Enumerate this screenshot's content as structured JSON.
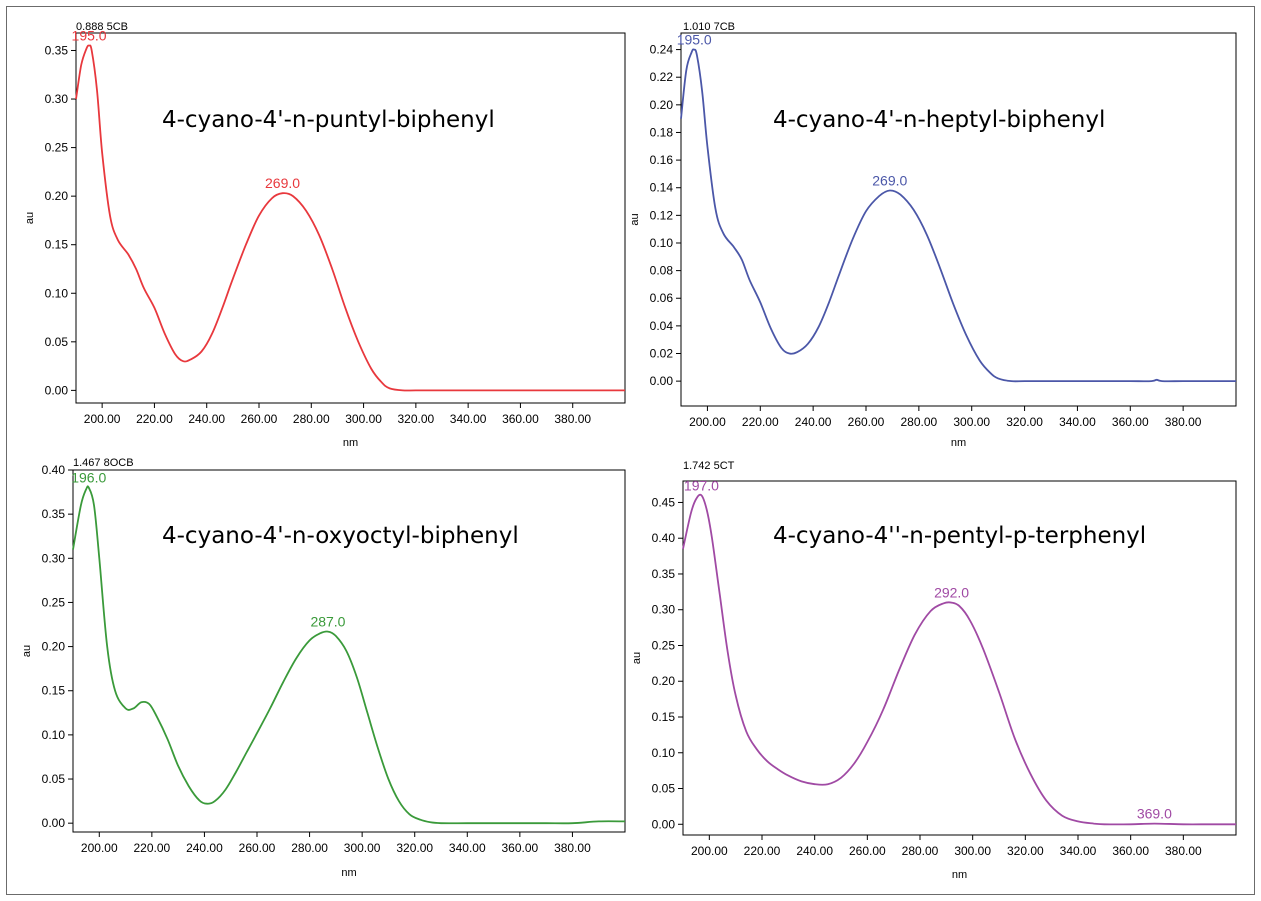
{
  "chart_data": [
    {
      "type": "line",
      "header": "0.888 5CB",
      "annotation": "4-cyano-4'-n-puntyl-biphenyl",
      "xlabel": "nm",
      "ylabel": "au",
      "xlim": [
        190,
        400
      ],
      "ylim": [
        -0.013,
        0.368
      ],
      "xticks": [
        "200.00",
        "220.00",
        "240.00",
        "260.00",
        "280.00",
        "300.00",
        "320.00",
        "340.00",
        "360.00",
        "380.00"
      ],
      "yticks": [
        "0.00",
        "0.05",
        "0.10",
        "0.15",
        "0.20",
        "0.25",
        "0.30",
        "0.35"
      ],
      "color": "#e8383d",
      "series": [
        {
          "x": [
            190,
            192,
            194,
            195,
            196,
            198,
            200,
            203,
            206,
            210,
            213,
            216,
            220,
            224,
            228,
            231,
            234,
            238,
            242,
            246,
            250,
            255,
            260,
            265,
            269,
            273,
            278,
            283,
            288,
            293,
            298,
            303,
            307,
            310,
            315,
            320,
            330,
            340,
            350,
            360,
            370,
            380,
            390,
            400
          ],
          "y": [
            0.3,
            0.335,
            0.352,
            0.355,
            0.35,
            0.31,
            0.245,
            0.18,
            0.155,
            0.14,
            0.125,
            0.105,
            0.085,
            0.058,
            0.037,
            0.03,
            0.032,
            0.04,
            0.058,
            0.085,
            0.115,
            0.15,
            0.18,
            0.198,
            0.203,
            0.2,
            0.185,
            0.16,
            0.125,
            0.085,
            0.05,
            0.022,
            0.008,
            0.002,
            0.0,
            0.0,
            0.0,
            0.0,
            0.0,
            0.0,
            0.0,
            0.0,
            0.0,
            0.0
          ]
        }
      ],
      "peaks": [
        {
          "x": 195,
          "y": 0.355,
          "label": "195.0"
        },
        {
          "x": 269,
          "y": 0.203,
          "label": "269.0"
        }
      ]
    },
    {
      "type": "line",
      "header": "1.010 7CB",
      "annotation": "4-cyano-4'-n-heptyl-biphenyl",
      "xlabel": "nm",
      "ylabel": "au",
      "xlim": [
        190,
        400
      ],
      "ylim": [
        -0.018,
        0.252
      ],
      "xticks": [
        "200.00",
        "220.00",
        "240.00",
        "260.00",
        "280.00",
        "300.00",
        "320.00",
        "340.00",
        "360.00",
        "380.00"
      ],
      "yticks": [
        "0.00",
        "0.02",
        "0.04",
        "0.06",
        "0.08",
        "0.10",
        "0.12",
        "0.14",
        "0.16",
        "0.18",
        "0.20",
        "0.22",
        "0.24"
      ],
      "color": "#4b57a8",
      "series": [
        {
          "x": [
            190,
            192,
            194,
            195,
            196,
            198,
            200,
            203,
            206,
            210,
            213,
            216,
            220,
            224,
            228,
            231,
            234,
            238,
            242,
            246,
            250,
            255,
            260,
            265,
            269,
            273,
            278,
            283,
            288,
            293,
            298,
            303,
            307,
            310,
            315,
            320,
            330,
            340,
            350,
            360,
            368,
            370,
            372,
            380,
            390,
            400
          ],
          "y": [
            0.19,
            0.225,
            0.238,
            0.24,
            0.236,
            0.21,
            0.17,
            0.125,
            0.107,
            0.097,
            0.088,
            0.073,
            0.057,
            0.038,
            0.024,
            0.02,
            0.021,
            0.027,
            0.039,
            0.057,
            0.078,
            0.103,
            0.123,
            0.134,
            0.138,
            0.135,
            0.124,
            0.106,
            0.082,
            0.056,
            0.033,
            0.015,
            0.006,
            0.002,
            0.0,
            0.0,
            0.0,
            0.0,
            0.0,
            0.0,
            0.0,
            0.001,
            0.0,
            0.0,
            0.0,
            0.0
          ]
        }
      ],
      "peaks": [
        {
          "x": 195,
          "y": 0.24,
          "label": "195.0"
        },
        {
          "x": 269,
          "y": 0.138,
          "label": "269.0"
        }
      ]
    },
    {
      "type": "line",
      "header": "1.467 8OCB",
      "annotation": "4-cyano-4'-n-oxyoctyl-biphenyl",
      "xlabel": "nm",
      "ylabel": "au",
      "xlim": [
        190,
        400
      ],
      "ylim": [
        -0.01,
        0.4
      ],
      "xticks": [
        "200.00",
        "220.00",
        "240.00",
        "260.00",
        "280.00",
        "300.00",
        "320.00",
        "340.00",
        "360.00",
        "380.00"
      ],
      "yticks": [
        "0.00",
        "0.05",
        "0.10",
        "0.15",
        "0.20",
        "0.25",
        "0.30",
        "0.35",
        "0.40"
      ],
      "color": "#3a9a3a",
      "series": [
        {
          "x": [
            190,
            193,
            195,
            196,
            198,
            200,
            203,
            206,
            210,
            213,
            216,
            219,
            222,
            226,
            230,
            234,
            238,
            241,
            244,
            248,
            252,
            256,
            260,
            265,
            270,
            275,
            280,
            284,
            287,
            290,
            294,
            298,
            302,
            306,
            310,
            314,
            318,
            322,
            326,
            330,
            340,
            350,
            360,
            370,
            380,
            390,
            400
          ],
          "y": [
            0.31,
            0.36,
            0.378,
            0.38,
            0.36,
            0.3,
            0.2,
            0.15,
            0.13,
            0.13,
            0.137,
            0.135,
            0.12,
            0.095,
            0.065,
            0.042,
            0.026,
            0.022,
            0.025,
            0.038,
            0.058,
            0.08,
            0.102,
            0.13,
            0.16,
            0.187,
            0.207,
            0.215,
            0.217,
            0.212,
            0.195,
            0.165,
            0.125,
            0.085,
            0.05,
            0.025,
            0.01,
            0.004,
            0.001,
            0.0,
            0.0,
            0.0,
            0.0,
            0.0,
            0.0,
            0.002,
            0.002
          ]
        }
      ],
      "peaks": [
        {
          "x": 196,
          "y": 0.38,
          "label": "196.0"
        },
        {
          "x": 287,
          "y": 0.217,
          "label": "287.0"
        }
      ]
    },
    {
      "type": "line",
      "header": "1.742 5CT",
      "annotation": "4-cyano-4''-n-pentyl-p-terphenyl",
      "xlabel": "nm",
      "ylabel": "au",
      "xlim": [
        190,
        400
      ],
      "ylim": [
        -0.015,
        0.48
      ],
      "xticks": [
        "200.00",
        "220.00",
        "240.00",
        "260.00",
        "280.00",
        "300.00",
        "320.00",
        "340.00",
        "360.00",
        "380.00"
      ],
      "yticks": [
        "0.00",
        "0.05",
        "0.10",
        "0.15",
        "0.20",
        "0.25",
        "0.30",
        "0.35",
        "0.40",
        "0.45"
      ],
      "color": "#a04aa4",
      "series": [
        {
          "x": [
            190,
            193,
            195,
            197,
            199,
            201,
            204,
            207,
            210,
            214,
            218,
            222,
            226,
            230,
            235,
            240,
            245,
            250,
            255,
            260,
            266,
            272,
            278,
            284,
            289,
            292,
            295,
            299,
            304,
            310,
            316,
            322,
            328,
            334,
            340,
            346,
            350,
            360,
            369,
            380,
            390,
            400
          ],
          "y": [
            0.385,
            0.435,
            0.455,
            0.46,
            0.44,
            0.4,
            0.32,
            0.24,
            0.18,
            0.13,
            0.105,
            0.088,
            0.077,
            0.068,
            0.06,
            0.056,
            0.056,
            0.065,
            0.085,
            0.115,
            0.16,
            0.215,
            0.265,
            0.298,
            0.309,
            0.31,
            0.305,
            0.285,
            0.245,
            0.185,
            0.12,
            0.07,
            0.033,
            0.012,
            0.004,
            0.001,
            0.0,
            0.0,
            0.001,
            0.0,
            0.0,
            0.0
          ]
        }
      ],
      "peaks": [
        {
          "x": 197,
          "y": 0.46,
          "label": "197.0"
        },
        {
          "x": 292,
          "y": 0.31,
          "label": "292.0"
        },
        {
          "x": 369,
          "y": 0.001,
          "label": "369.0"
        }
      ]
    }
  ]
}
